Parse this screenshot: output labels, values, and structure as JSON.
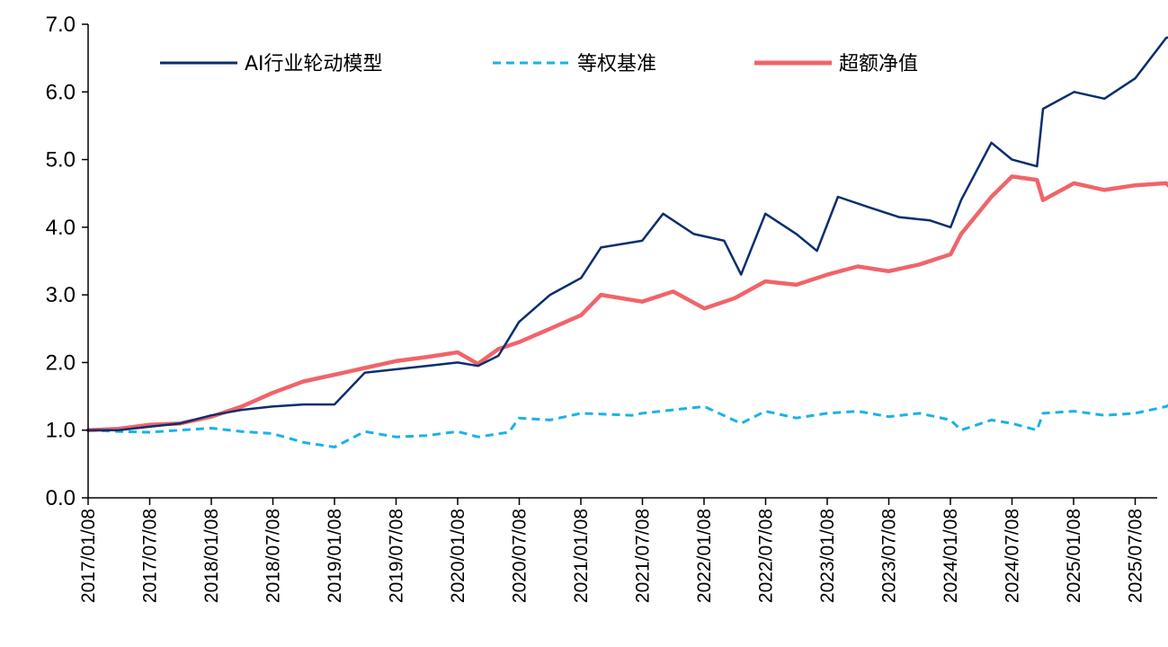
{
  "chart_data": {
    "type": "line",
    "title": "",
    "xlabel": "",
    "ylabel": "",
    "ylim": [
      0,
      7
    ],
    "yticks": [
      "0.0",
      "1.0",
      "2.0",
      "3.0",
      "4.0",
      "5.0",
      "6.0",
      "7.0"
    ],
    "grid": false,
    "legend_position": "top",
    "categories": [
      "2017/01/08",
      "2017/07/08",
      "2018/01/08",
      "2018/07/08",
      "2019/01/08",
      "2019/07/08",
      "2020/01/08",
      "2020/07/08",
      "2021/01/08",
      "2021/07/08",
      "2022/01/08",
      "2022/07/08",
      "2023/01/08",
      "2023/07/08",
      "2024/01/08",
      "2024/07/08",
      "2025/01/08",
      "2025/07/08"
    ],
    "series": [
      {
        "name": "AI行业轮动模型",
        "color": "#0a2e6e",
        "style": "solid",
        "x": [
          "2017/01/08",
          "2017/04/08",
          "2017/07/08",
          "2017/10/08",
          "2018/01/08",
          "2018/04/08",
          "2018/07/08",
          "2018/10/08",
          "2019/01/08",
          "2019/04/08",
          "2019/07/08",
          "2019/10/08",
          "2020/01/08",
          "2020/03/08",
          "2020/05/08",
          "2020/07/08",
          "2020/10/08",
          "2021/01/08",
          "2021/03/08",
          "2021/07/08",
          "2021/09/08",
          "2021/12/08",
          "2022/03/08",
          "2022/04/27",
          "2022/07/08",
          "2022/10/08",
          "2022/12/08",
          "2023/02/08",
          "2023/05/08",
          "2023/08/08",
          "2023/11/08",
          "2024/01/08",
          "2024/02/08",
          "2024/05/08",
          "2024/07/08",
          "2024/09/20",
          "2024/10/08",
          "2025/01/08",
          "2025/04/08",
          "2025/07/08",
          "2025/10/08",
          "2025/11/28"
        ],
        "values": [
          1.0,
          1.0,
          1.05,
          1.1,
          1.22,
          1.3,
          1.35,
          1.38,
          1.38,
          1.85,
          1.9,
          1.95,
          2.0,
          1.95,
          2.1,
          2.6,
          3.0,
          3.25,
          3.7,
          3.8,
          4.2,
          3.9,
          3.8,
          3.3,
          4.2,
          3.9,
          3.65,
          4.45,
          4.3,
          4.15,
          4.1,
          4.0,
          4.4,
          5.25,
          5.0,
          4.9,
          5.75,
          6.0,
          5.9,
          6.2,
          6.8,
          6.85
        ]
      },
      {
        "name": "等权基准",
        "color": "#1ab2e8",
        "style": "dashed",
        "x": [
          "2017/01/08",
          "2017/04/08",
          "2017/07/08",
          "2017/10/08",
          "2018/01/08",
          "2018/04/08",
          "2018/07/08",
          "2018/10/08",
          "2019/01/08",
          "2019/04/08",
          "2019/07/08",
          "2019/10/08",
          "2020/01/08",
          "2020/03/08",
          "2020/06/08",
          "2020/07/08",
          "2020/10/08",
          "2021/01/08",
          "2021/06/08",
          "2021/07/08",
          "2021/10/08",
          "2022/01/08",
          "2022/04/27",
          "2022/07/08",
          "2022/10/08",
          "2023/01/08",
          "2023/04/08",
          "2023/07/08",
          "2023/10/08",
          "2024/01/08",
          "2024/02/08",
          "2024/05/08",
          "2024/07/08",
          "2024/09/20",
          "2024/10/08",
          "2025/01/08",
          "2025/04/08",
          "2025/07/08",
          "2025/10/08",
          "2025/11/28"
        ],
        "values": [
          1.0,
          0.98,
          0.97,
          1.0,
          1.03,
          0.98,
          0.95,
          0.82,
          0.75,
          0.98,
          0.9,
          0.92,
          0.98,
          0.9,
          0.97,
          1.18,
          1.15,
          1.25,
          1.22,
          1.25,
          1.3,
          1.35,
          1.1,
          1.28,
          1.18,
          1.25,
          1.28,
          1.2,
          1.25,
          1.15,
          1.0,
          1.15,
          1.1,
          1.0,
          1.25,
          1.28,
          1.22,
          1.25,
          1.35,
          1.5
        ]
      },
      {
        "name": "超额净值",
        "color": "#f0646a",
        "style": "solid",
        "x": [
          "2017/01/08",
          "2017/04/08",
          "2017/07/08",
          "2017/10/08",
          "2018/01/08",
          "2018/04/08",
          "2018/07/08",
          "2018/10/08",
          "2019/01/08",
          "2019/04/08",
          "2019/07/08",
          "2019/10/08",
          "2020/01/08",
          "2020/03/08",
          "2020/05/08",
          "2020/07/08",
          "2020/10/08",
          "2021/01/08",
          "2021/03/08",
          "2021/07/08",
          "2021/10/08",
          "2022/01/08",
          "2022/04/08",
          "2022/07/08",
          "2022/10/08",
          "2023/01/08",
          "2023/04/08",
          "2023/07/08",
          "2023/10/08",
          "2024/01/08",
          "2024/02/08",
          "2024/05/08",
          "2024/07/08",
          "2024/09/20",
          "2024/10/08",
          "2025/01/08",
          "2025/04/08",
          "2025/07/08",
          "2025/10/08",
          "2025/11/28"
        ],
        "values": [
          1.0,
          1.02,
          1.08,
          1.1,
          1.2,
          1.35,
          1.55,
          1.72,
          1.82,
          1.92,
          2.02,
          2.08,
          2.15,
          1.98,
          2.2,
          2.3,
          2.5,
          2.7,
          3.0,
          2.9,
          3.05,
          2.8,
          2.95,
          3.2,
          3.15,
          3.3,
          3.42,
          3.35,
          3.45,
          3.6,
          3.9,
          4.45,
          4.75,
          4.7,
          4.4,
          4.65,
          4.55,
          4.62,
          4.65,
          4.4
        ]
      }
    ]
  }
}
